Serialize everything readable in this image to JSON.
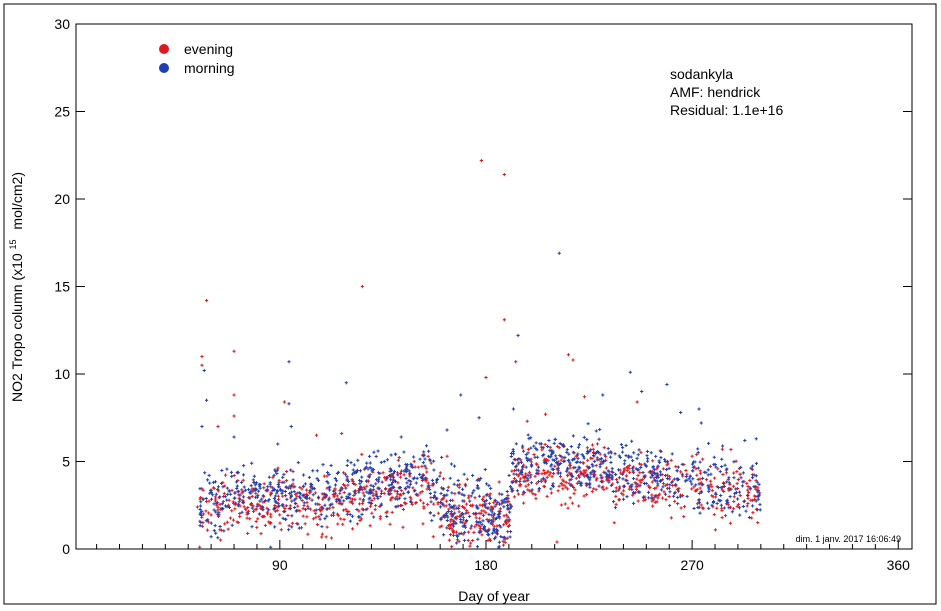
{
  "chart_data": {
    "type": "scatter",
    "xlabel": "Day of year",
    "ylabel_main": "NO2 Tropo column (x10",
    "ylabel_sup": "15",
    "ylabel_tail": "mol/cm2)",
    "xlim": [
      1,
      366
    ],
    "ylim": [
      0,
      30
    ],
    "xticks": [
      90,
      180,
      270,
      360
    ],
    "yticks": [
      0,
      5,
      10,
      15,
      20,
      25,
      30
    ],
    "legend": {
      "placement": "top-left",
      "entries": [
        {
          "label": "evening",
          "color": "#e0191e"
        },
        {
          "label": "morning",
          "color": "#1e3fb4"
        }
      ]
    },
    "annotation_lines": [
      "sodankyla",
      "AMF: hendrick",
      "Residual: 1.1e+16"
    ],
    "timestamp": "dim. 1 janv. 2017 16:06:49",
    "series": [
      {
        "name": "evening",
        "color": "#e0191e",
        "segments": [
          {
            "x": [
              55,
              90
            ],
            "y": [
              2.2,
              2.8
            ],
            "spread": 0.8,
            "n": 150
          },
          {
            "x": [
              90,
              110
            ],
            "y": [
              2.8,
              2.5
            ],
            "spread": 0.8,
            "n": 80
          },
          {
            "x": [
              110,
              155
            ],
            "y": [
              2.6,
              3.8
            ],
            "spread": 0.9,
            "n": 200
          },
          {
            "x": [
              155,
              166
            ],
            "y": [
              3.4,
              1.6
            ],
            "spread": 0.8,
            "n": 55
          },
          {
            "x": [
              166,
              191
            ],
            "y": [
              1.8,
              1.7
            ],
            "spread": 0.9,
            "n": 140
          },
          {
            "x": [
              191,
              230
            ],
            "y": [
              4.0,
              4.6
            ],
            "spread": 0.8,
            "n": 190
          },
          {
            "x": [
              230,
              265
            ],
            "y": [
              4.2,
              3.7
            ],
            "spread": 0.8,
            "n": 150
          },
          {
            "x": [
              265,
              300
            ],
            "y": [
              3.6,
              3.2
            ],
            "spread": 0.9,
            "n": 120
          }
        ],
        "outliers": [
          {
            "x": 54,
            "y": 2.4
          },
          {
            "x": 55,
            "y": 0.1
          },
          {
            "x": 56,
            "y": 11.0
          },
          {
            "x": 56,
            "y": 10.5
          },
          {
            "x": 58,
            "y": 14.2
          },
          {
            "x": 63,
            "y": 7.0
          },
          {
            "x": 70,
            "y": 11.3
          },
          {
            "x": 70,
            "y": 8.8
          },
          {
            "x": 70,
            "y": 7.6
          },
          {
            "x": 92,
            "y": 8.4
          },
          {
            "x": 106,
            "y": 6.5
          },
          {
            "x": 117,
            "y": 6.6
          },
          {
            "x": 126,
            "y": 15.0
          },
          {
            "x": 157,
            "y": 0.7
          },
          {
            "x": 163,
            "y": 5.3
          },
          {
            "x": 180,
            "y": 9.8
          },
          {
            "x": 178,
            "y": 22.2
          },
          {
            "x": 188,
            "y": 21.4
          },
          {
            "x": 188,
            "y": 13.1
          },
          {
            "x": 193,
            "y": 10.7
          },
          {
            "x": 198,
            "y": 7.3
          },
          {
            "x": 206,
            "y": 7.7
          },
          {
            "x": 211,
            "y": 0.4
          },
          {
            "x": 216,
            "y": 11.1
          },
          {
            "x": 218,
            "y": 10.8
          },
          {
            "x": 223,
            "y": 8.7
          },
          {
            "x": 236,
            "y": 1.5
          },
          {
            "x": 246,
            "y": 8.4
          },
          {
            "x": 270,
            "y": 5.3
          },
          {
            "x": 272,
            "y": 5.4
          }
        ]
      },
      {
        "name": "morning",
        "color": "#1e3fb4",
        "segments": [
          {
            "x": [
              55,
              90
            ],
            "y": [
              2.8,
              3.4
            ],
            "spread": 0.9,
            "n": 150
          },
          {
            "x": [
              90,
              110
            ],
            "y": [
              3.2,
              2.9
            ],
            "spread": 0.9,
            "n": 80
          },
          {
            "x": [
              110,
              155
            ],
            "y": [
              3.3,
              4.3
            ],
            "spread": 0.9,
            "n": 210
          },
          {
            "x": [
              155,
              166
            ],
            "y": [
              3.8,
              2.0
            ],
            "spread": 0.9,
            "n": 55
          },
          {
            "x": [
              166,
              191
            ],
            "y": [
              2.4,
              2.0
            ],
            "spread": 1.0,
            "n": 140
          },
          {
            "x": [
              191,
              230
            ],
            "y": [
              4.8,
              5.0
            ],
            "spread": 0.8,
            "n": 190
          },
          {
            "x": [
              230,
              265
            ],
            "y": [
              4.6,
              4.1
            ],
            "spread": 0.8,
            "n": 150
          },
          {
            "x": [
              265,
              300
            ],
            "y": [
              4.0,
              3.4
            ],
            "spread": 0.9,
            "n": 120
          }
        ],
        "outliers": [
          {
            "x": 56,
            "y": 7.0
          },
          {
            "x": 57,
            "y": 10.2
          },
          {
            "x": 58,
            "y": 8.5
          },
          {
            "x": 60,
            "y": 0.7
          },
          {
            "x": 62,
            "y": 0.9
          },
          {
            "x": 70,
            "y": 6.4
          },
          {
            "x": 86,
            "y": 0.1
          },
          {
            "x": 94,
            "y": 10.7
          },
          {
            "x": 94,
            "y": 8.3
          },
          {
            "x": 95,
            "y": 7.0
          },
          {
            "x": 119,
            "y": 9.5
          },
          {
            "x": 143,
            "y": 6.4
          },
          {
            "x": 163,
            "y": 6.8
          },
          {
            "x": 169,
            "y": 8.8
          },
          {
            "x": 177,
            "y": 7.5
          },
          {
            "x": 194,
            "y": 12.2
          },
          {
            "x": 192,
            "y": 8.0
          },
          {
            "x": 212,
            "y": 16.9
          },
          {
            "x": 231,
            "y": 8.8
          },
          {
            "x": 243,
            "y": 10.1
          },
          {
            "x": 248,
            "y": 9.0
          },
          {
            "x": 259,
            "y": 9.4
          },
          {
            "x": 265,
            "y": 7.8
          },
          {
            "x": 273,
            "y": 8.0
          },
          {
            "x": 274,
            "y": 7.2
          },
          {
            "x": 293,
            "y": 6.2
          },
          {
            "x": 298,
            "y": 6.3
          },
          {
            "x": 295,
            "y": 1.8
          }
        ]
      }
    ]
  }
}
